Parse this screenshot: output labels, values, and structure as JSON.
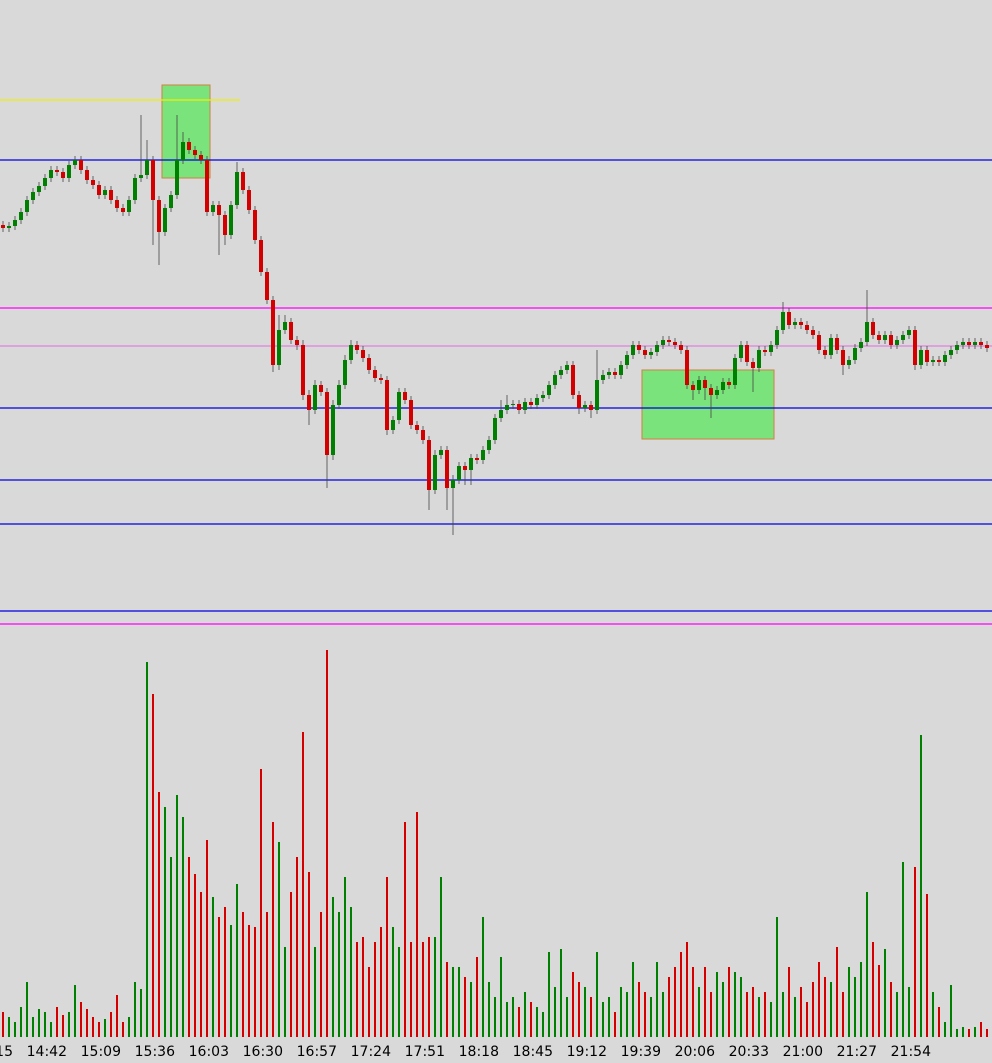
{
  "chart_data": {
    "type": "candlestick",
    "time_labels": [
      "15",
      "14:42",
      "15:09",
      "15:36",
      "16:03",
      "16:30",
      "16:57",
      "17:24",
      "17:51",
      "18:18",
      "18:45",
      "19:12",
      "19:39",
      "20:06",
      "20:33",
      "21:00",
      "21:27",
      "21:54"
    ],
    "ylim": [
      0,
      640
    ],
    "volume_lim": [
      0,
      400
    ],
    "up_color": "#008000",
    "down_color": "#d40000",
    "open": [
      415,
      412,
      414,
      420,
      428,
      440,
      448,
      454,
      462,
      470,
      468,
      462,
      475,
      480,
      470,
      460,
      455,
      445,
      450,
      440,
      432,
      428,
      440,
      462,
      465,
      480,
      440,
      408,
      432,
      445,
      480,
      498,
      490,
      485,
      480,
      428,
      435,
      425,
      405,
      435,
      468,
      450,
      430,
      400,
      368,
      340,
      275,
      310,
      318,
      300,
      295,
      245,
      230,
      255,
      248,
      185,
      235,
      255,
      280,
      295,
      290,
      282,
      270,
      262,
      260,
      210,
      220,
      248,
      240,
      215,
      210,
      200,
      150,
      185,
      190,
      152,
      160,
      174,
      170,
      182,
      180,
      190,
      200,
      222,
      230,
      235,
      236,
      230,
      238,
      235,
      242,
      245,
      255,
      265,
      270,
      275,
      245,
      232,
      235,
      230,
      260,
      265,
      268,
      265,
      275,
      285,
      295,
      290,
      285,
      288,
      295,
      300,
      298,
      295,
      290,
      255,
      250,
      260,
      252,
      245,
      250,
      258,
      255,
      282,
      295,
      278,
      272,
      290,
      288,
      295,
      310,
      328,
      315,
      318,
      315,
      310,
      305,
      290,
      285,
      302,
      290,
      275,
      280,
      292,
      298,
      318,
      305,
      300,
      305,
      295,
      300,
      305,
      310,
      275,
      290,
      278,
      280,
      278,
      285,
      290,
      295,
      298,
      295,
      298,
      295
    ],
    "high": [
      419,
      418,
      424,
      432,
      444,
      452,
      458,
      466,
      474,
      474,
      472,
      479,
      484,
      484,
      474,
      464,
      459,
      454,
      454,
      444,
      436,
      444,
      466,
      525,
      500,
      484,
      444,
      436,
      449,
      525,
      508,
      502,
      494,
      489,
      484,
      439,
      439,
      429,
      439,
      478,
      472,
      454,
      434,
      404,
      372,
      344,
      325,
      325,
      322,
      304,
      300,
      250,
      260,
      259,
      252,
      240,
      260,
      285,
      300,
      299,
      294,
      286,
      274,
      266,
      264,
      224,
      252,
      252,
      244,
      219,
      214,
      204,
      190,
      194,
      194,
      165,
      178,
      178,
      186,
      186,
      194,
      204,
      226,
      240,
      245,
      240,
      240,
      242,
      242,
      246,
      249,
      259,
      269,
      274,
      279,
      279,
      249,
      239,
      239,
      290,
      270,
      272,
      272,
      279,
      289,
      299,
      299,
      294,
      292,
      299,
      304,
      304,
      302,
      299,
      294,
      259,
      264,
      264,
      256,
      254,
      262,
      262,
      286,
      299,
      299,
      282,
      294,
      294,
      299,
      314,
      338,
      332,
      322,
      322,
      319,
      314,
      309,
      294,
      306,
      306,
      294,
      284,
      296,
      302,
      350,
      322,
      309,
      309,
      309,
      304,
      309,
      314,
      314,
      294,
      294,
      284,
      284,
      289,
      294,
      299,
      302,
      302,
      302,
      302,
      299
    ],
    "low": [
      408,
      408,
      410,
      416,
      424,
      436,
      444,
      450,
      458,
      464,
      458,
      458,
      471,
      466,
      456,
      451,
      441,
      441,
      436,
      428,
      424,
      424,
      436,
      458,
      461,
      395,
      375,
      404,
      428,
      441,
      476,
      486,
      481,
      476,
      424,
      424,
      385,
      395,
      401,
      431,
      446,
      426,
      396,
      364,
      336,
      268,
      270,
      306,
      296,
      290,
      240,
      215,
      226,
      244,
      152,
      180,
      231,
      251,
      276,
      286,
      278,
      266,
      258,
      256,
      205,
      206,
      216,
      236,
      211,
      206,
      196,
      130,
      146,
      181,
      130,
      105,
      156,
      155,
      155,
      176,
      176,
      186,
      196,
      218,
      226,
      231,
      226,
      226,
      231,
      231,
      238,
      241,
      251,
      261,
      266,
      241,
      226,
      228,
      222,
      226,
      256,
      261,
      261,
      261,
      271,
      281,
      286,
      281,
      281,
      284,
      291,
      294,
      291,
      286,
      251,
      240,
      246,
      240,
      222,
      241,
      246,
      251,
      251,
      278,
      274,
      248,
      268,
      284,
      284,
      291,
      306,
      311,
      311,
      311,
      306,
      301,
      286,
      281,
      281,
      286,
      265,
      271,
      276,
      288,
      294,
      301,
      296,
      296,
      291,
      291,
      296,
      301,
      270,
      271,
      274,
      274,
      274,
      274,
      281,
      286,
      291,
      291,
      291,
      291,
      288
    ],
    "close": [
      412,
      414,
      420,
      428,
      440,
      448,
      454,
      462,
      470,
      468,
      462,
      475,
      480,
      470,
      460,
      455,
      445,
      450,
      440,
      432,
      428,
      440,
      462,
      465,
      480,
      440,
      408,
      432,
      445,
      480,
      498,
      490,
      485,
      480,
      428,
      435,
      425,
      405,
      435,
      468,
      450,
      430,
      400,
      368,
      340,
      275,
      310,
      318,
      300,
      295,
      245,
      230,
      255,
      248,
      185,
      235,
      255,
      280,
      295,
      290,
      282,
      270,
      262,
      260,
      210,
      220,
      248,
      240,
      215,
      210,
      200,
      150,
      185,
      190,
      152,
      160,
      174,
      170,
      182,
      180,
      190,
      200,
      222,
      230,
      235,
      236,
      230,
      238,
      235,
      242,
      245,
      255,
      265,
      270,
      275,
      245,
      232,
      235,
      230,
      260,
      265,
      268,
      265,
      275,
      285,
      295,
      290,
      285,
      288,
      295,
      300,
      298,
      295,
      290,
      255,
      250,
      260,
      252,
      245,
      250,
      258,
      255,
      282,
      295,
      278,
      272,
      290,
      288,
      295,
      310,
      328,
      315,
      318,
      315,
      310,
      305,
      290,
      285,
      302,
      290,
      275,
      280,
      292,
      298,
      318,
      305,
      300,
      305,
      295,
      300,
      305,
      310,
      275,
      290,
      278,
      280,
      278,
      285,
      290,
      295,
      298,
      295,
      298,
      295,
      292
    ],
    "volume": [
      25,
      20,
      15,
      30,
      55,
      20,
      28,
      25,
      15,
      30,
      22,
      25,
      52,
      35,
      28,
      20,
      15,
      18,
      25,
      42,
      15,
      20,
      55,
      48,
      375,
      343,
      245,
      230,
      180,
      242,
      220,
      180,
      163,
      145,
      197,
      140,
      120,
      130,
      112,
      153,
      125,
      112,
      110,
      268,
      125,
      215,
      195,
      90,
      145,
      180,
      305,
      165,
      90,
      125,
      387,
      140,
      125,
      160,
      130,
      95,
      100,
      70,
      95,
      110,
      160,
      110,
      90,
      215,
      95,
      225,
      95,
      100,
      100,
      160,
      75,
      70,
      70,
      60,
      55,
      80,
      120,
      55,
      40,
      80,
      35,
      40,
      30,
      45,
      35,
      30,
      25,
      85,
      50,
      88,
      40,
      65,
      55,
      50,
      40,
      85,
      35,
      40,
      25,
      50,
      45,
      75,
      55,
      45,
      40,
      75,
      45,
      60,
      70,
      85,
      95,
      70,
      50,
      70,
      45,
      65,
      55,
      70,
      65,
      60,
      45,
      50,
      40,
      45,
      35,
      120,
      45,
      70,
      40,
      50,
      35,
      55,
      75,
      60,
      55,
      90,
      45,
      70,
      60,
      75,
      145,
      95,
      72,
      88,
      55,
      45,
      175,
      50,
      170,
      302,
      143,
      45,
      30,
      15,
      52,
      8,
      10,
      8,
      10,
      15,
      8
    ],
    "levels": [
      {
        "value": 480,
        "color": "#0000e0"
      },
      {
        "value": 332,
        "color": "#ff00ff"
      },
      {
        "value": 294,
        "color": "#e080e0"
      },
      {
        "value": 232,
        "color": "#0000e0"
      },
      {
        "value": 160,
        "color": "#0000e0"
      },
      {
        "value": 116,
        "color": "#0000e0"
      },
      {
        "value": 29,
        "color": "#0000e0"
      },
      {
        "value": 16,
        "color": "#ff00ff"
      },
      {
        "value": 540,
        "color": "#f0f000",
        "until": 39.5
      }
    ],
    "zones": [
      {
        "from": 26.5,
        "to": 34.5,
        "low": 462,
        "high": 555,
        "color": "#7be37b"
      },
      {
        "from": 106.5,
        "to": 128.5,
        "low": 201,
        "high": 270,
        "color": "#7be37b"
      }
    ]
  }
}
